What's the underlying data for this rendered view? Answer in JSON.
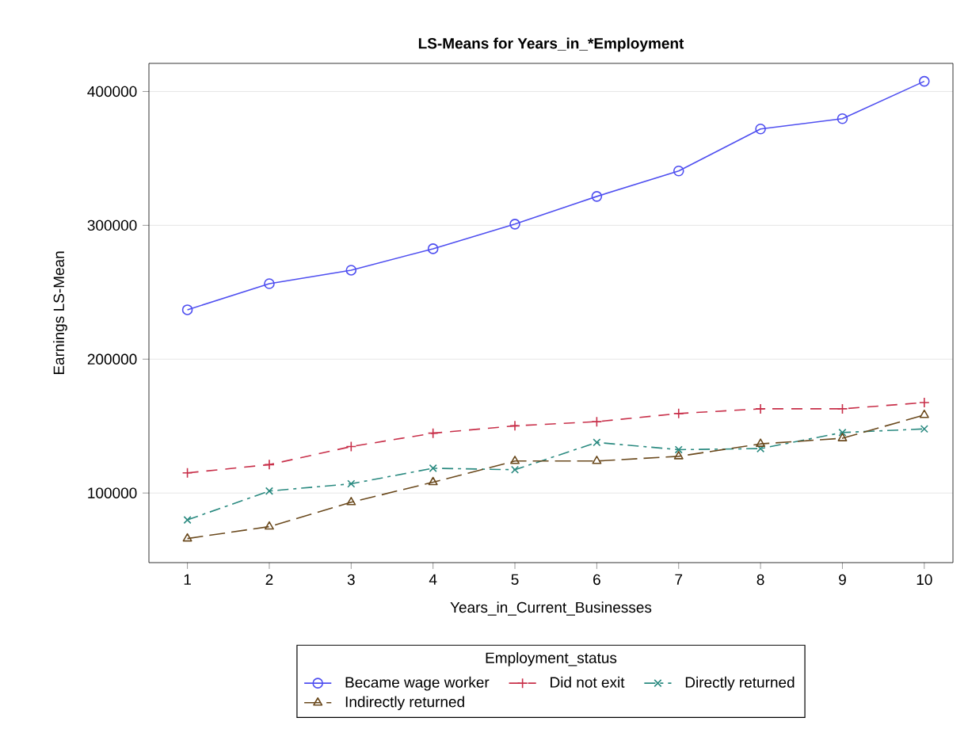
{
  "chart_data": {
    "type": "line",
    "title": "LS-Means for Years_in_*Employment",
    "xlabel": "Years_in_Current_Businesses",
    "ylabel": "Earnings LS-Mean",
    "legend_title": "Employment_status",
    "x": [
      1,
      2,
      3,
      4,
      5,
      6,
      7,
      8,
      9,
      10
    ],
    "series": [
      {
        "name": "Became wage worker",
        "color": "#4f4ff0",
        "marker": "circle",
        "line_style": "solid",
        "values": [
          236900,
          256400,
          266500,
          282500,
          300900,
          321600,
          340600,
          372000,
          379700,
          407600
        ]
      },
      {
        "name": "Did not exit",
        "color": "#c8304a",
        "marker": "plus",
        "line_style": "dashed",
        "values": [
          115000,
          121200,
          134700,
          144700,
          150200,
          153300,
          159400,
          162900,
          162900,
          167600
        ]
      },
      {
        "name": "Directly returned",
        "color": "#2a8a80",
        "marker": "cross",
        "line_style": "dashed",
        "values": [
          79900,
          101500,
          106900,
          118500,
          117400,
          137800,
          132400,
          133200,
          145200,
          147900
        ]
      },
      {
        "name": "Indirectly returned",
        "color": "#6b4a1e",
        "marker": "triangle",
        "line_style": "dashed",
        "values": [
          66000,
          74900,
          93100,
          108100,
          123900,
          123900,
          127400,
          136700,
          140900,
          158300
        ]
      }
    ],
    "xlim": [
      0.53,
      10.35
    ],
    "ylim": [
      48000,
      421000
    ],
    "xticks": [
      1,
      2,
      3,
      4,
      5,
      6,
      7,
      8,
      9,
      10
    ],
    "yticks": [
      100000,
      200000,
      300000,
      400000
    ],
    "grid": "y",
    "legend": "bottom"
  }
}
